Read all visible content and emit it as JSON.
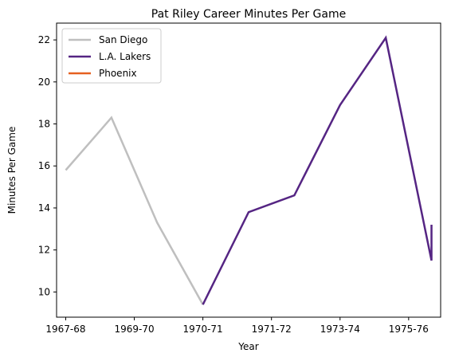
{
  "chart_data": {
    "type": "line",
    "title": "Pat Riley Career Minutes Per Game",
    "xlabel": "Year",
    "ylabel": "Minutes Per Game",
    "x_tick_labels": [
      "1967-68",
      "1969-70",
      "1970-71",
      "1971-72",
      "1973-74",
      "1975-76"
    ],
    "x_tick_positions": [
      0,
      1.5,
      3,
      4.5,
      6,
      7.5
    ],
    "y_ticks": [
      10,
      12,
      14,
      16,
      18,
      20,
      22
    ],
    "xlim": [
      -0.2,
      8.2
    ],
    "ylim": [
      8.8,
      22.8
    ],
    "grid": false,
    "legend_position": "upper-left",
    "series": [
      {
        "name": "San Diego",
        "color": "#bfbfbf",
        "x": [
          0,
          1,
          2,
          3
        ],
        "y": [
          15.8,
          18.3,
          13.3,
          9.4
        ]
      },
      {
        "name": "L.A. Lakers",
        "color": "#552583",
        "x": [
          3,
          4,
          5,
          6,
          7,
          8,
          8
        ],
        "y": [
          9.4,
          13.8,
          14.6,
          18.9,
          22.1,
          11.5,
          13.2
        ]
      },
      {
        "name": "Phoenix",
        "color": "#e56020",
        "x": [],
        "y": []
      }
    ]
  }
}
